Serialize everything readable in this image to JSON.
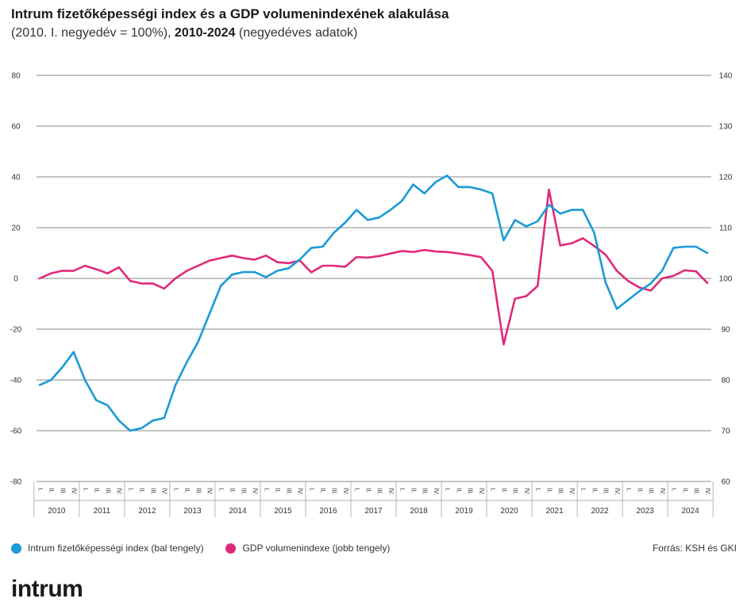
{
  "title": "Intrum fizetőképességi index és a GDP volumenindexének alakulása",
  "subtitle_part1": "(2010. I. negyedév = 100%), ",
  "subtitle_bold": "2010-2024",
  "subtitle_part2": " (negyedéves adatok)",
  "legend": {
    "series1": "Intrum fizetőképességi index (bal tengely)",
    "series2": "GDP volumenindexe (jobb tengely)"
  },
  "source": "Forrás: KSH és GKI",
  "logo": "intrum",
  "colors": {
    "series1": "#1a9ad6",
    "series2": "#e0297a",
    "grid": "#888888",
    "text": "#333333"
  },
  "chart_data": {
    "type": "line",
    "quarters": [
      "I.",
      "II.",
      "III.",
      "IV."
    ],
    "years": [
      "2010",
      "2011",
      "2012",
      "2013",
      "2014",
      "2015",
      "2016",
      "2017",
      "2018",
      "2019",
      "2020",
      "2021",
      "2022",
      "2023",
      "2024"
    ],
    "y_left": {
      "ticks": [
        80,
        60,
        40,
        20,
        0,
        -20,
        -40,
        -60,
        -80
      ],
      "min": -80,
      "max": 80
    },
    "y_right": {
      "ticks": [
        140,
        130,
        120,
        110,
        100,
        90,
        80,
        70,
        60
      ],
      "min": 60,
      "max": 140
    },
    "grid": true,
    "legend_position": "bottom",
    "series": [
      {
        "name": "Intrum fizetőképességi index (bal tengely)",
        "axis": "left",
        "values": [
          -42,
          -40,
          -35,
          -29,
          -40,
          -48,
          -50,
          -56,
          -60,
          -59,
          -56,
          -55,
          -42,
          -33,
          -25,
          -14,
          -3,
          1.5,
          2.5,
          2.5,
          0.5,
          3,
          4,
          7.5,
          12,
          12.5,
          18,
          22,
          27,
          23,
          24,
          27,
          30.5,
          37,
          33.5,
          38,
          40.5,
          36,
          36,
          35,
          33.5,
          15,
          23,
          20.5,
          22.5,
          29,
          25.5,
          27,
          27,
          18,
          -1.5,
          -12,
          -8.5,
          -5,
          -2,
          3,
          12,
          12.5,
          12.5,
          10
        ]
      },
      {
        "name": "GDP volumenindexe (jobb tengely)",
        "axis": "right",
        "values": [
          100,
          101,
          101.5,
          101.5,
          102.5,
          101.8,
          101,
          102.2,
          99.5,
          99,
          99,
          98,
          100,
          101.5,
          102.5,
          103.5,
          104,
          104.5,
          104,
          103.7,
          104.5,
          103.2,
          103,
          103.5,
          101.2,
          102.5,
          102.5,
          102.3,
          104.2,
          104.1,
          104.4,
          104.9,
          105.4,
          105.2,
          105.6,
          105.3,
          105.2,
          104.9,
          104.6,
          104.2,
          101.5,
          87,
          96,
          96.5,
          98.5,
          117.5,
          106.5,
          106.9,
          107.9,
          106.4,
          104.7,
          101.5,
          99.5,
          98.2,
          97.6,
          100,
          100.5,
          101.6,
          101.4,
          99.1
        ]
      }
    ]
  }
}
